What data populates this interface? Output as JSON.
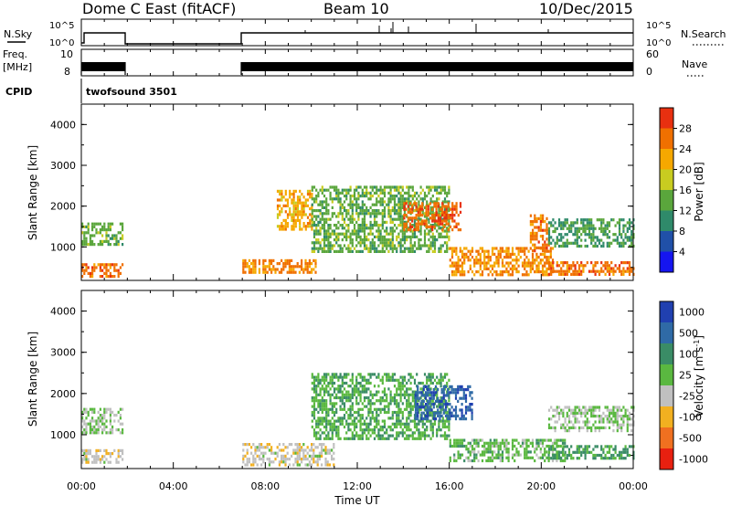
{
  "header": {
    "station": "Dome C East (fitACF)",
    "beam": "Beam 10",
    "date": "10/Dec/2015"
  },
  "strips": {
    "nsky": {
      "label": "N.Sky",
      "ticks": [
        "10^5",
        "10^0"
      ]
    },
    "nsearch": {
      "label": "N.Search",
      "ticks": [
        "10^5",
        "10^0"
      ]
    },
    "freq": {
      "label_top": "Freq.",
      "label_bottom": "[MHz]",
      "ticks": [
        "10",
        "8"
      ]
    },
    "nave": {
      "label": "Nave",
      "ticks": [
        "60",
        "0"
      ]
    },
    "cpid": {
      "label": "CPID",
      "value": "twofsound 3501"
    }
  },
  "axes": {
    "ylabel": "Slant Range [km]",
    "xlabel": "Time UT",
    "xticks": [
      "00:00",
      "04:00",
      "08:00",
      "12:00",
      "16:00",
      "20:00",
      "00:00"
    ],
    "yticks": [
      "1000",
      "2000",
      "3000",
      "4000"
    ]
  },
  "chart_data": [
    {
      "type": "heatmap",
      "title": "",
      "xlabel": "",
      "ylabel": "Slant Range [km]",
      "xlim": [
        0,
        24
      ],
      "ylim": [
        180,
        4500
      ],
      "colorbar": {
        "label": "Power [dB]",
        "range": [
          0,
          32
        ],
        "ticks": [
          "4",
          "8",
          "12",
          "16",
          "20",
          "24",
          "28"
        ],
        "colors": [
          "#1515f0",
          "#2050a8",
          "#2f8a6a",
          "#5aa63c",
          "#c8cc20",
          "#f6a800",
          "#f07000",
          "#e83010"
        ]
      },
      "coverage_hours": [
        [
          0.0,
          1.8
        ],
        [
          7.0,
          24.0
        ]
      ],
      "echo_regions": [
        {
          "t": [
            0.0,
            1.8
          ],
          "range": [
            300,
            600
          ],
          "value": 26
        },
        {
          "t": [
            0.0,
            1.8
          ],
          "range": [
            1050,
            1600
          ],
          "value": 14
        },
        {
          "t": [
            7.0,
            10.2
          ],
          "range": [
            350,
            700
          ],
          "value": 25
        },
        {
          "t": [
            8.5,
            10.0
          ],
          "range": [
            1400,
            2400
          ],
          "value": 22
        },
        {
          "t": [
            10.0,
            16.0
          ],
          "range": [
            900,
            2500
          ],
          "value": 14
        },
        {
          "t": [
            14.0,
            16.5
          ],
          "range": [
            1400,
            2100
          ],
          "value": 27
        },
        {
          "t": [
            16.0,
            20.5
          ],
          "range": [
            300,
            1000
          ],
          "value": 24
        },
        {
          "t": [
            19.5,
            20.3
          ],
          "range": [
            900,
            1800
          ],
          "value": 26
        },
        {
          "t": [
            20.3,
            24.0
          ],
          "range": [
            300,
            650
          ],
          "value": 26
        },
        {
          "t": [
            20.3,
            24.0
          ],
          "range": [
            1050,
            1700
          ],
          "value": 12
        }
      ]
    },
    {
      "type": "heatmap",
      "title": "",
      "xlabel": "Time UT",
      "ylabel": "Slant Range [km]",
      "xlim": [
        0,
        24
      ],
      "ylim": [
        180,
        4500
      ],
      "colorbar": {
        "label": "Velocity [m s^-1]",
        "range": [
          -1000,
          1000
        ],
        "ticks": [
          "1000",
          "500",
          "100",
          "25",
          "-25",
          "-100",
          "-500",
          "-1000"
        ],
        "colors": [
          "#2040b0",
          "#2f6aa6",
          "#3a8c66",
          "#5ab840",
          "#c0c0c0",
          "#f2b020",
          "#f07020",
          "#e82010"
        ]
      },
      "coverage_hours": [
        [
          0.0,
          1.8
        ],
        [
          7.0,
          24.0
        ]
      ],
      "echo_regions": [
        {
          "t": [
            0.0,
            1.8
          ],
          "range": [
            300,
            650
          ],
          "value": -150
        },
        {
          "t": [
            0.0,
            1.8
          ],
          "range": [
            1050,
            1650
          ],
          "value": 0
        },
        {
          "t": [
            7.0,
            11.0
          ],
          "range": [
            300,
            800
          ],
          "value": -150
        },
        {
          "t": [
            10.0,
            16.0
          ],
          "range": [
            900,
            2500
          ],
          "value": 200
        },
        {
          "t": [
            14.5,
            17.0
          ],
          "range": [
            1400,
            2200
          ],
          "value": 700
        },
        {
          "t": [
            16.0,
            21.0
          ],
          "range": [
            400,
            900
          ],
          "value": 120
        },
        {
          "t": [
            20.3,
            24.0
          ],
          "range": [
            450,
            750
          ],
          "value": 300
        },
        {
          "t": [
            20.3,
            24.0
          ],
          "range": [
            1100,
            1700
          ],
          "value": 0
        }
      ]
    }
  ]
}
